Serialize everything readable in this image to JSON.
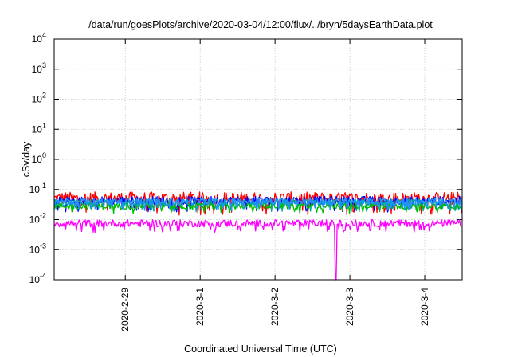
{
  "chart_data": {
    "type": "line",
    "title": "/data/run/goesPlots/archive/2020-03-04/12:00/flux/../bryn/5daysEarthData.plot",
    "xlabel": "Coordinated Universal Time (UTC)",
    "ylabel": "cSv/day",
    "yscale": "log",
    "ylim": [
      0.0001,
      10000
    ],
    "xlim": [
      "2020-02-28T01:12",
      "2020-03-04T12:00"
    ],
    "x_ticks": [
      "2020-2-29",
      "2020-3-1",
      "2020-3-2",
      "2020-3-3",
      "2020-3-4"
    ],
    "y_ticks": [
      {
        "value": 0.0001,
        "base": "10",
        "exp": "-4"
      },
      {
        "value": 0.001,
        "base": "10",
        "exp": "-3"
      },
      {
        "value": 0.01,
        "base": "10",
        "exp": "-2"
      },
      {
        "value": 0.1,
        "base": "10",
        "exp": "-1"
      },
      {
        "value": 1,
        "base": "10",
        "exp": "0"
      },
      {
        "value": 10,
        "base": "10",
        "exp": "1"
      },
      {
        "value": 100,
        "base": "10",
        "exp": "2"
      },
      {
        "value": 1000,
        "base": "10",
        "exp": "3"
      },
      {
        "value": 10000,
        "base": "10",
        "exp": "4"
      }
    ],
    "grid": true,
    "legend": "none",
    "series": [
      {
        "color": "#ff0000",
        "level": 0.05,
        "spread": 0.22
      },
      {
        "color": "#0000ff",
        "level": 0.042,
        "spread": 0.15
      },
      {
        "color": "#00aaaa",
        "level": 0.036,
        "spread": 0.12
      },
      {
        "color": "#00bb00",
        "level": 0.028,
        "spread": 0.1
      },
      {
        "color": "#1e90ff",
        "level": 0.04,
        "spread": 0.12
      },
      {
        "color": "#ff00ff",
        "level": 0.0075,
        "spread": 0.12,
        "dip": {
          "x": "2020-03-02T19:30",
          "value": 0.0001
        }
      }
    ]
  }
}
